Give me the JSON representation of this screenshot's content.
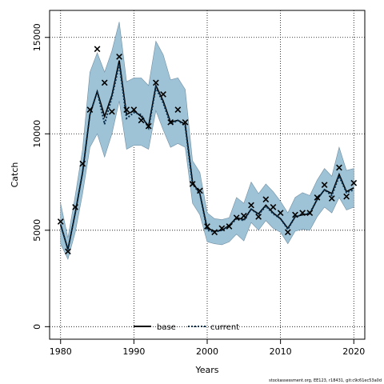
{
  "chart_data": {
    "type": "line",
    "title": "",
    "xlabel": "Years",
    "ylabel": "Catch",
    "xlim": [
      1978.5,
      2021.5
    ],
    "ylim": [
      -650,
      16400
    ],
    "x_ticks": [
      1980,
      1990,
      2000,
      2010,
      2020
    ],
    "y_ticks": [
      0,
      5000,
      10000,
      15000
    ],
    "grid": true,
    "legend": {
      "placement": "bottom-center",
      "entries": [
        "base",
        "current"
      ]
    },
    "colors": {
      "band": "#9fc3d6",
      "band_edge": "#6f8ea3",
      "current_line": "#0b3150",
      "base_line": "#000000",
      "observed_marker": "#000000"
    },
    "years": [
      1980,
      1981,
      1982,
      1983,
      1984,
      1985,
      1986,
      1987,
      1988,
      1989,
      1990,
      1991,
      1992,
      1993,
      1994,
      1995,
      1996,
      1997,
      1998,
      1999,
      2000,
      2001,
      2002,
      2003,
      2004,
      2005,
      2006,
      2007,
      2008,
      2009,
      2010,
      2011,
      2012,
      2013,
      2014,
      2015,
      2016,
      2017,
      2018,
      2019,
      2020
    ],
    "series": [
      {
        "name": "base",
        "values": [
          5300,
          4000,
          5900,
          8000,
          11000,
          12200,
          10900,
          12000,
          13800,
          11000,
          11200,
          10900,
          10400,
          12500,
          11700,
          10600,
          10700,
          10500,
          7500,
          6900,
          5100,
          4950,
          5000,
          5250,
          5650,
          5550,
          6100,
          5850,
          6300,
          5900,
          5600,
          5100,
          5700,
          5800,
          5850,
          6600,
          7100,
          6900,
          7900,
          7000,
          7200
        ]
      },
      {
        "name": "current",
        "values": [
          5300,
          4000,
          5900,
          8000,
          11000,
          12200,
          10500,
          11900,
          13600,
          10800,
          11100,
          11000,
          10300,
          12400,
          11600,
          10500,
          10700,
          10400,
          7400,
          6900,
          5000,
          4900,
          5000,
          5200,
          5600,
          5500,
          6100,
          5800,
          6250,
          5850,
          5600,
          5050,
          5700,
          5800,
          5900,
          6600,
          7100,
          6800,
          7800,
          6950,
          7100
        ]
      },
      {
        "name": "current_lower",
        "values": [
          4300,
          3500,
          4900,
          6900,
          9300,
          10000,
          8800,
          10000,
          11700,
          9200,
          9400,
          9400,
          9200,
          11200,
          10200,
          9300,
          9500,
          9300,
          6400,
          5800,
          4400,
          4300,
          4250,
          4400,
          4800,
          4450,
          5400,
          5000,
          5500,
          5100,
          4900,
          4300,
          4950,
          5050,
          5000,
          5700,
          6200,
          5900,
          6700,
          6050,
          6200
        ]
      },
      {
        "name": "current_upper",
        "values": [
          6400,
          4600,
          6800,
          9200,
          13200,
          14200,
          13200,
          14300,
          15800,
          12700,
          12900,
          12900,
          12500,
          14800,
          14100,
          12800,
          12900,
          12300,
          8600,
          8000,
          5900,
          5600,
          5550,
          5650,
          6700,
          6400,
          7500,
          6900,
          7400,
          7000,
          6500,
          5900,
          6700,
          6950,
          6800,
          7600,
          8200,
          7800,
          9300,
          8100,
          8200
        ]
      },
      {
        "name": "observed",
        "values": [
          5450,
          3900,
          6200,
          8450,
          11250,
          14400,
          12650,
          11150,
          14000,
          11250,
          11250,
          10700,
          10400,
          12650,
          12050,
          10600,
          11250,
          10600,
          7400,
          7050,
          5200,
          4900,
          5100,
          5200,
          5650,
          5750,
          6300,
          5700,
          6600,
          6200,
          5900,
          4900,
          5800,
          5900,
          5900,
          6700,
          7350,
          6650,
          8250,
          6750,
          7450
        ]
      }
    ]
  },
  "footnote": "stockassessment.org, EE123, r18431, git:c9c61ec53a0d"
}
